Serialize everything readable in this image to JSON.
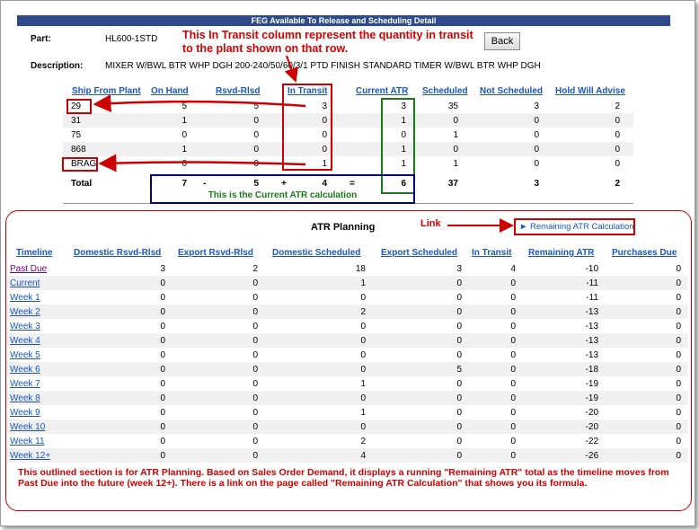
{
  "window": {
    "title": "FEG Available To Release and Scheduling Detail"
  },
  "part": {
    "label": "Part:",
    "value": "HL600-1STD"
  },
  "description": {
    "label": "Description:",
    "value": "MIXER W/BWL BTR WHP DGH 200-240/50/60/3/1 PTD FINISH STANDARD TIMER W/BWL BTR WHP DGH"
  },
  "back_button": "Back",
  "annotations": {
    "in_transit_note": "This In Transit column represent the quantity in transit to the plant shown on that row.",
    "atr_calc_note": "This is the Current ATR calculation",
    "link_note": "Link",
    "planning_note": "This outlined section is for ATR Planning. Based on Sales Order Demand, it displays a running \"Remaining ATR\" total as the timeline moves from Past Due into the future (week 12+). There is a link on the page called \"Remaining ATR Calculation\" that shows you its formula."
  },
  "plants_table": {
    "headers": [
      "Ship From Plant",
      "On Hand",
      "Rsvd-Rlsd",
      "In Transit",
      "Current ATR",
      "Scheduled",
      "Not Scheduled",
      "Hold Will Advise"
    ],
    "rows": [
      [
        "29",
        "5",
        "5",
        "3",
        "3",
        "35",
        "3",
        "2"
      ],
      [
        "31",
        "1",
        "0",
        "0",
        "1",
        "0",
        "0",
        "0"
      ],
      [
        "75",
        "0",
        "0",
        "0",
        "0",
        "1",
        "0",
        "0"
      ],
      [
        "868",
        "1",
        "0",
        "0",
        "1",
        "0",
        "0",
        "0"
      ],
      [
        "BRAG",
        "0",
        "0",
        "1",
        "1",
        "1",
        "0",
        "0"
      ]
    ],
    "total": {
      "label": "Total",
      "on_hand": "7",
      "op1": "-",
      "rsvd": "5",
      "op2": "+",
      "in_transit": "4",
      "op3": "=",
      "current_atr": "6",
      "scheduled": "37",
      "not_scheduled": "3",
      "hold": "2"
    }
  },
  "atr_planning": {
    "title": "ATR Planning",
    "calc_link": "► Remaining ATR Calculation",
    "headers": [
      "Timeline",
      "Domestic Rsvd-Rlsd",
      "Export Rsvd-Rlsd",
      "Domestic Scheduled",
      "Export Scheduled",
      "In Transit",
      "Remaining ATR",
      "Purchases Due"
    ],
    "rows": [
      [
        "Past Due",
        "3",
        "2",
        "18",
        "3",
        "4",
        "-10",
        "0"
      ],
      [
        "Current",
        "0",
        "0",
        "1",
        "0",
        "0",
        "-11",
        "0"
      ],
      [
        "Week 1",
        "0",
        "0",
        "0",
        "0",
        "0",
        "-11",
        "0"
      ],
      [
        "Week 2",
        "0",
        "0",
        "2",
        "0",
        "0",
        "-13",
        "0"
      ],
      [
        "Week 3",
        "0",
        "0",
        "0",
        "0",
        "0",
        "-13",
        "0"
      ],
      [
        "Week 4",
        "0",
        "0",
        "0",
        "0",
        "0",
        "-13",
        "0"
      ],
      [
        "Week 5",
        "0",
        "0",
        "0",
        "0",
        "0",
        "-13",
        "0"
      ],
      [
        "Week 6",
        "0",
        "0",
        "0",
        "5",
        "0",
        "-18",
        "0"
      ],
      [
        "Week 7",
        "0",
        "0",
        "1",
        "0",
        "0",
        "-19",
        "0"
      ],
      [
        "Week 8",
        "0",
        "0",
        "0",
        "0",
        "0",
        "-19",
        "0"
      ],
      [
        "Week 9",
        "0",
        "0",
        "1",
        "0",
        "0",
        "-20",
        "0"
      ],
      [
        "Week 10",
        "0",
        "0",
        "0",
        "0",
        "0",
        "-20",
        "0"
      ],
      [
        "Week 11",
        "0",
        "0",
        "2",
        "0",
        "0",
        "-22",
        "0"
      ],
      [
        "Week 12+",
        "0",
        "0",
        "4",
        "0",
        "0",
        "-26",
        "0"
      ]
    ]
  },
  "colors": {
    "title_bar": "#2f4a88",
    "link": "#1a55c4",
    "annotation": "#d00000",
    "total_box": "#000080",
    "atr_box": "#1a7a1a"
  }
}
